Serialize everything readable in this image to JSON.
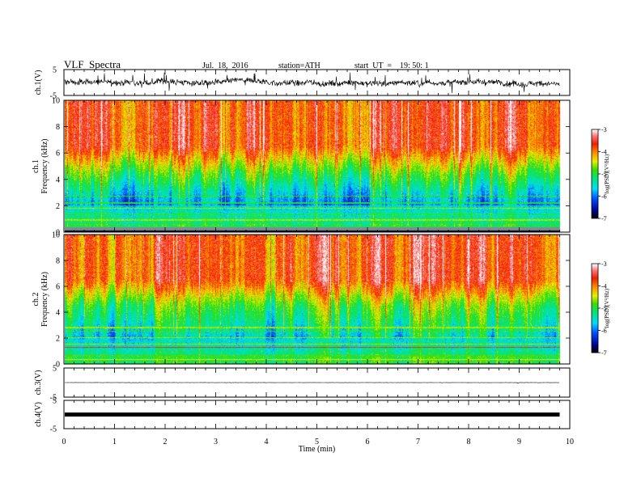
{
  "header": {
    "title": "VLF  Spectra",
    "date": "Jul.  18,  2016",
    "station": "station=ATH",
    "start_ut": "start  UT  =    19: 50: 1"
  },
  "chart_data": [
    {
      "type": "line",
      "name": "ch1-waveform",
      "ylabel": "ch.1(V)",
      "ylim": [
        -5,
        5
      ],
      "yticks": [
        "5",
        "-5"
      ],
      "description_level": "noisy waveform around 0 V, amplitude roughly 2-3 V"
    },
    {
      "type": "heatmap",
      "name": "ch1-spectrogram",
      "ylabel_channel": "ch.1",
      "ylabel": "Frequency  (kHz)",
      "ylim": [
        0,
        10
      ],
      "yticks": [
        "0",
        "2",
        "4",
        "6",
        "8",
        "10"
      ],
      "colorbar": {
        "label": "log(PSD)(V²/Hz)",
        "range": [
          -7,
          -3
        ],
        "ticks": [
          "-3",
          "-4",
          "-5",
          "-6",
          "-7"
        ]
      }
    },
    {
      "type": "heatmap",
      "name": "ch2-spectrogram",
      "ylabel_channel": "ch.2",
      "ylabel": "Frequency  (kHz)",
      "ylim": [
        0,
        10
      ],
      "yticks": [
        "0",
        "2",
        "4",
        "6",
        "8",
        "10"
      ],
      "colorbar": {
        "label": "log(PSD)(V²/Hz)",
        "range": [
          -7,
          -3
        ],
        "ticks": [
          "-3",
          "-4",
          "-5",
          "-6",
          "-7"
        ]
      }
    },
    {
      "type": "line",
      "name": "ch3-waveform",
      "ylabel": "ch.3(V)",
      "ylim": [
        -5,
        5
      ],
      "yticks": [
        "5",
        "-5"
      ]
    },
    {
      "type": "line",
      "name": "ch4-waveform",
      "ylabel": "ch.4(V)",
      "ylim": [
        -5,
        5
      ],
      "yticks": [
        "5",
        "-5"
      ]
    }
  ],
  "xaxis": {
    "label": "Time  (min)",
    "xlim": [
      0,
      10
    ],
    "ticks": [
      "0",
      "1",
      "2",
      "3",
      "4",
      "5",
      "6",
      "7",
      "8",
      "9",
      "10"
    ],
    "data_end": 9.8
  },
  "colors": {
    "frame": "#000000",
    "background": "#ffffff"
  }
}
